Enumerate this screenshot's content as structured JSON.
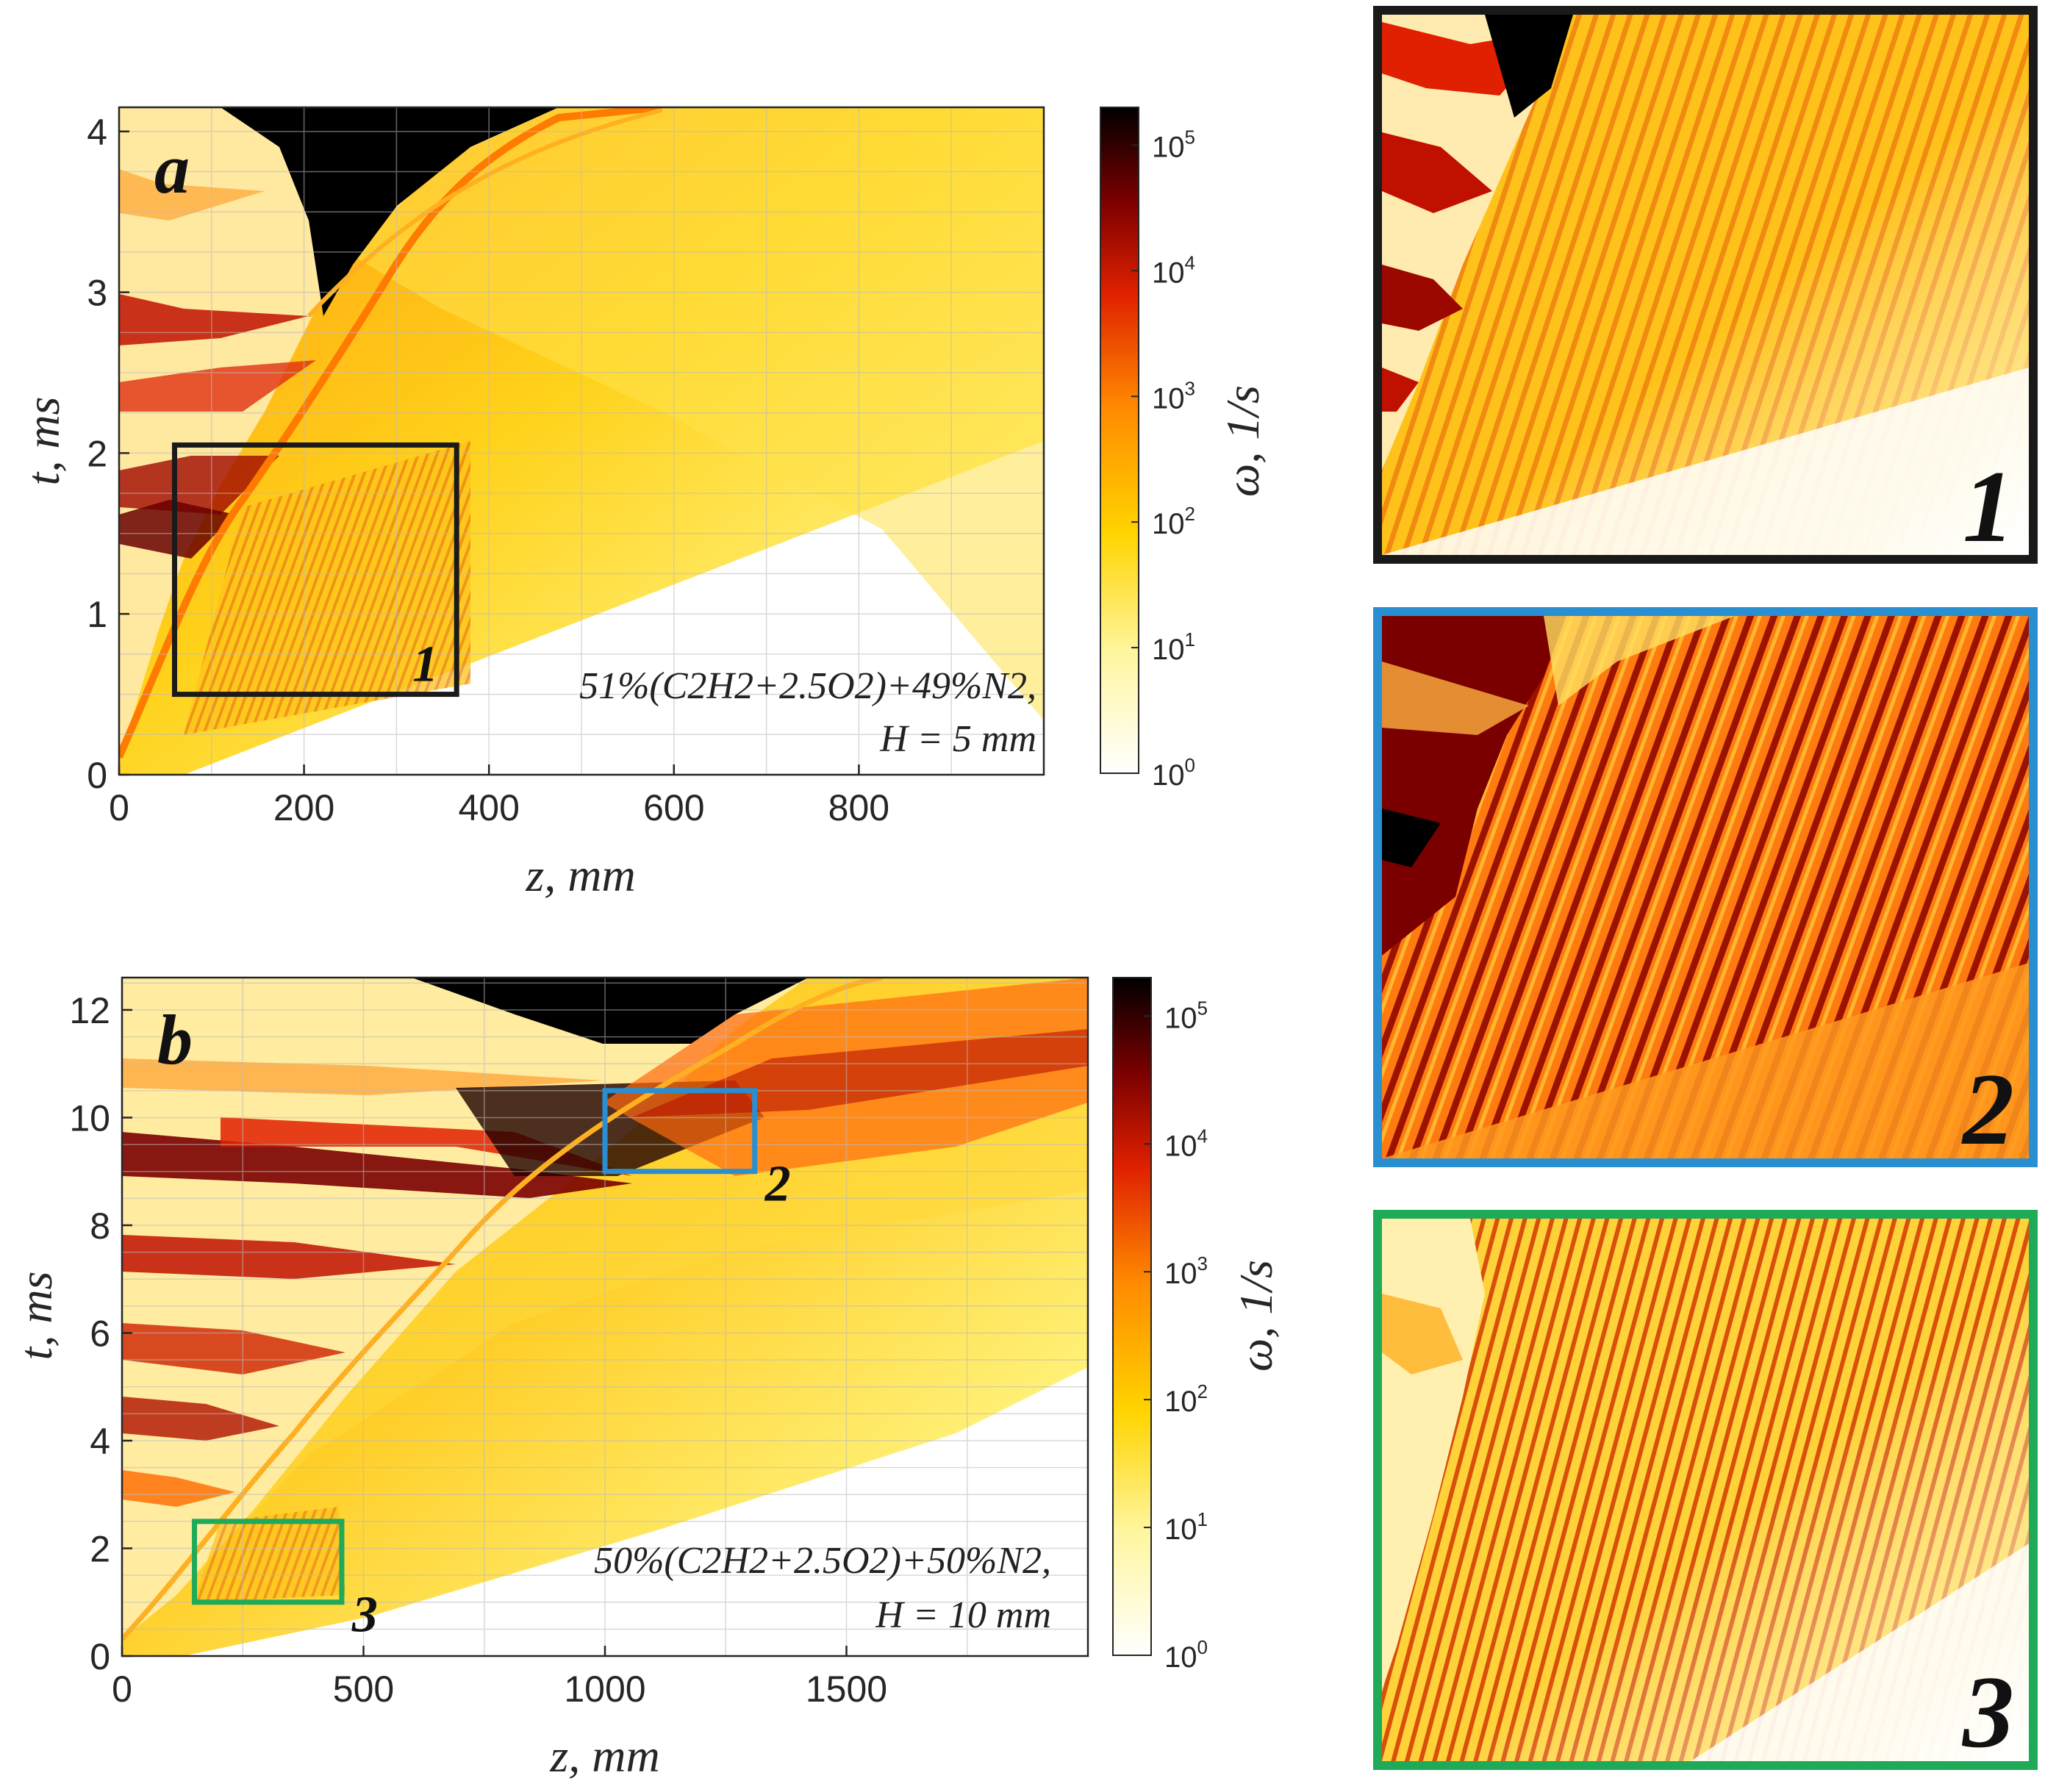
{
  "chart_data": [
    {
      "type": "heatmap",
      "panel_label": "a",
      "xlabel": "z, mm",
      "ylabel": "t, ms",
      "xlim": [
        0,
        1000
      ],
      "ylim": [
        0,
        4.15
      ],
      "xticks": [
        "0",
        "200",
        "400",
        "600",
        "800"
      ],
      "yticks": [
        "0",
        "1",
        "2",
        "3",
        "4"
      ],
      "xtick_values": [
        0,
        200,
        400,
        600,
        800
      ],
      "ytick_values": [
        0,
        1,
        2,
        3,
        4
      ],
      "grid": true,
      "annotation": [
        "51%(C2H2+2.5O2)+49%N2,",
        "H = 5 mm"
      ],
      "colorbar": {
        "label": "ω, 1/s",
        "scale": "log",
        "range": [
          1,
          200000
        ],
        "tick_base": "10",
        "tick_exponents": [
          "0",
          "1",
          "2",
          "3",
          "4",
          "5"
        ]
      },
      "zoom_boxes": [
        {
          "label": "1",
          "x": [
            60,
            365
          ],
          "y": [
            0.5,
            2.05
          ],
          "color": "#1a1a1a"
        }
      ]
    },
    {
      "type": "heatmap",
      "panel_label": "b",
      "xlabel": "z, mm",
      "ylabel": "t, ms",
      "xlim": [
        0,
        2000
      ],
      "ylim": [
        0,
        12.6
      ],
      "xticks": [
        "0",
        "500",
        "1000",
        "1500"
      ],
      "yticks": [
        "0",
        "2",
        "4",
        "6",
        "8",
        "10",
        "12"
      ],
      "xtick_values": [
        0,
        500,
        1000,
        1500
      ],
      "ytick_values": [
        0,
        2,
        4,
        6,
        8,
        10,
        12
      ],
      "grid": true,
      "annotation": [
        "50%(C2H2+2.5O2)+50%N2,",
        "H = 10 mm"
      ],
      "colorbar": {
        "label": "ω, 1/s",
        "scale": "log",
        "range": [
          1,
          200000
        ],
        "tick_base": "10",
        "tick_exponents": [
          "0",
          "1",
          "2",
          "3",
          "4",
          "5"
        ]
      },
      "zoom_boxes": [
        {
          "label": "2",
          "x": [
            1000,
            1310
          ],
          "y": [
            9.0,
            10.5
          ],
          "color": "#2a8fd0"
        },
        {
          "label": "3",
          "x": [
            150,
            455
          ],
          "y": [
            1.0,
            2.5
          ],
          "color": "#1faa59"
        }
      ]
    }
  ],
  "insets": [
    {
      "label": "1",
      "color": "#1a1a1a"
    },
    {
      "label": "2",
      "color": "#2a8fd0"
    },
    {
      "label": "3",
      "color": "#1faa59"
    }
  ]
}
